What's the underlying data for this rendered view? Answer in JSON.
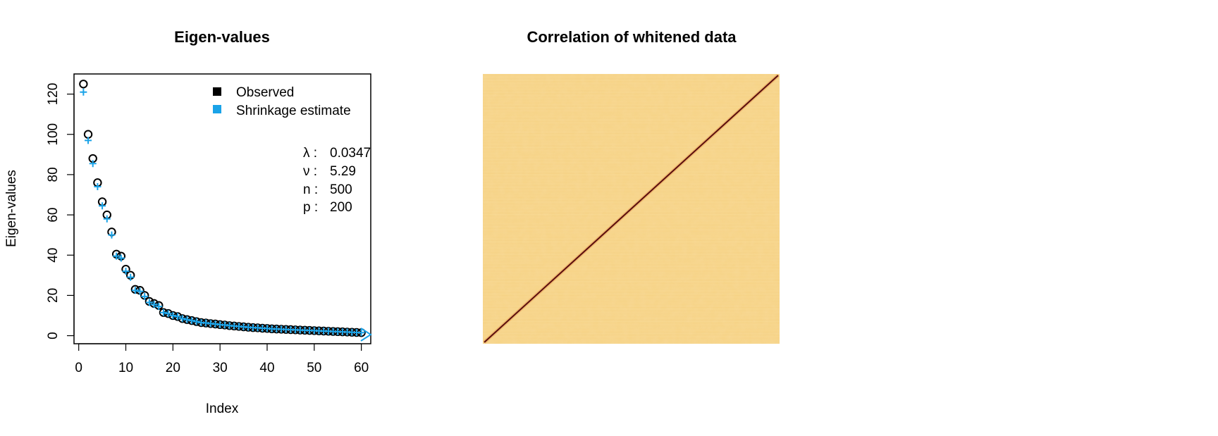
{
  "chart_data": [
    {
      "type": "scatter",
      "title": "Eigen-values",
      "xlabel": "Index",
      "ylabel": "Eigen-values",
      "xlim": [
        -1,
        62
      ],
      "ylim": [
        -4,
        130
      ],
      "xticks": [
        0,
        10,
        20,
        30,
        40,
        50,
        60
      ],
      "yticks": [
        0,
        20,
        40,
        60,
        80,
        100,
        120
      ],
      "legend": {
        "position": "top-right",
        "entries": [
          {
            "label": "Observed",
            "color": "#000000"
          },
          {
            "label": "Shrinkage estimate",
            "color": "#1aa3e8"
          }
        ]
      },
      "stats": [
        {
          "symbol": "λ :",
          "value": "0.0347"
        },
        {
          "symbol": "ν :",
          "value": "5.29"
        },
        {
          "symbol": "n :",
          "value": "500"
        },
        {
          "symbol": "p :",
          "value": "200"
        }
      ],
      "series": [
        {
          "name": "Observed",
          "marker": "circle",
          "color": "#000000",
          "values": [
            125,
            100,
            88,
            76,
            66.5,
            60,
            51.5,
            40.5,
            39.5,
            33,
            30,
            23,
            22.5,
            20,
            17,
            16,
            15,
            11.5,
            11,
            10,
            9.5,
            8.5,
            8,
            7.5,
            7,
            6.5,
            6.3,
            6,
            5.8,
            5.5,
            5.3,
            5,
            4.8,
            4.6,
            4.4,
            4.2,
            4,
            3.9,
            3.7,
            3.6,
            3.4,
            3.3,
            3.2,
            3.1,
            3,
            2.9,
            2.8,
            2.7,
            2.6,
            2.5,
            2.4,
            2.3,
            2.2,
            2.1,
            2,
            1.9,
            1.8,
            1.7,
            1.6,
            1.5
          ]
        },
        {
          "name": "Shrinkage estimate",
          "marker": "plus",
          "color": "#1aa3e8",
          "values": [
            121,
            97,
            85.5,
            74,
            64.5,
            58,
            50,
            39.5,
            38.5,
            32,
            29,
            22.5,
            22,
            19.5,
            16.5,
            15.5,
            14.5,
            11.5,
            11,
            10,
            9.5,
            8.5,
            8,
            7.5,
            7,
            6.5,
            6.3,
            6,
            5.8,
            5.5,
            5.3,
            5,
            4.8,
            4.6,
            4.4,
            4.2,
            4,
            3.9,
            3.7,
            3.6,
            3.4,
            3.3,
            3.2,
            3.1,
            3,
            2.9,
            2.8,
            2.7,
            2.6,
            2.5,
            2.4,
            2.3,
            2.2,
            2.1,
            2,
            1.9,
            1.8,
            1.7,
            1.6,
            1.5
          ]
        }
      ],
      "x": [
        1,
        2,
        3,
        4,
        5,
        6,
        7,
        8,
        9,
        10,
        11,
        12,
        13,
        14,
        15,
        16,
        17,
        18,
        19,
        20,
        21,
        22,
        23,
        24,
        25,
        26,
        27,
        28,
        29,
        30,
        31,
        32,
        33,
        34,
        35,
        36,
        37,
        38,
        39,
        40,
        41,
        42,
        43,
        44,
        45,
        46,
        47,
        48,
        49,
        50,
        51,
        52,
        53,
        54,
        55,
        56,
        57,
        58,
        59,
        60
      ]
    },
    {
      "type": "heatmap",
      "title": "Correlation of whitened data",
      "size": 200,
      "diagonal_color": "#5a0d0d",
      "offdiag_colors": [
        "#f7d58a",
        "#f2c36a",
        "#fbe2a8"
      ]
    }
  ]
}
